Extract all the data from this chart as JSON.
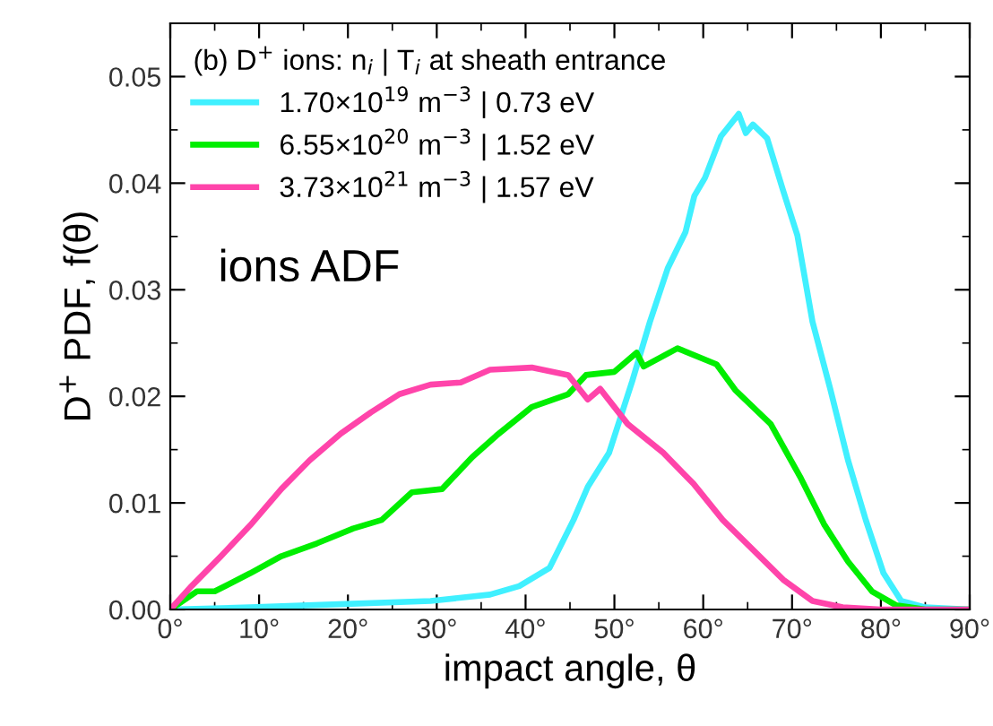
{
  "chart_data": {
    "type": "line",
    "xlabel": "impact angle, θ",
    "ylabel": "D$^{+}$ PDF, f(θ)",
    "legend_title": "(b) D$^{+}$ ions: n$_{i}$ | T$_{i}$ at sheath entrance",
    "legend": "top left",
    "grid": false,
    "marker": "none",
    "line_style": "solid",
    "annotations": [
      "ions ADF"
    ],
    "xlim": [
      0,
      90
    ],
    "ylim": [
      0,
      0.055
    ],
    "xticks": [
      {
        "value": 0,
        "label": "0°"
      },
      {
        "value": 10,
        "label": "10°"
      },
      {
        "value": 20,
        "label": "20°"
      },
      {
        "value": 30,
        "label": "30°"
      },
      {
        "value": 40,
        "label": "40°"
      },
      {
        "value": 50,
        "label": "50°"
      },
      {
        "value": 60,
        "label": "60°"
      },
      {
        "value": 70,
        "label": "70°"
      },
      {
        "value": 80,
        "label": "80°"
      },
      {
        "value": 90,
        "label": "90°"
      }
    ],
    "yticks": [
      {
        "value": 0,
        "label": "0.00"
      },
      {
        "value": 0.01,
        "label": "0.01"
      },
      {
        "value": 0.02,
        "label": "0.02"
      },
      {
        "value": 0.03,
        "label": "0.03"
      },
      {
        "value": 0.04,
        "label": "0.04"
      },
      {
        "value": 0.05,
        "label": "0.05"
      }
    ],
    "series": [
      {
        "name": "1.70×10$^{19}$ m$^{−3}$ | 0.73 eV",
        "color": "#40f0ff",
        "x": [
          0,
          9,
          19,
          29.3,
          36,
          39.3,
          42.7,
          45.4,
          47,
          49.4,
          52,
          54,
          56,
          58,
          59,
          60.2,
          62,
          64,
          64.8,
          65.6,
          67.2,
          69,
          70.6,
          72.3,
          74.3,
          76.3,
          78.3,
          80.3,
          82.3,
          85,
          90
        ],
        "values": [
          0,
          0.0002,
          0.0005,
          0.0008,
          0.0014,
          0.0022,
          0.0039,
          0.0084,
          0.0115,
          0.0147,
          0.0214,
          0.027,
          0.032,
          0.0354,
          0.0388,
          0.0405,
          0.0444,
          0.0465,
          0.0447,
          0.0455,
          0.0442,
          0.0393,
          0.0351,
          0.027,
          0.0207,
          0.014,
          0.0084,
          0.0034,
          0.0008,
          0.0002,
          0
        ]
      },
      {
        "name": "6.55×10$^{20}$ m$^{−3}$ | 1.52 eV",
        "color": "#00ee00",
        "x": [
          0,
          3,
          5,
          9,
          12.5,
          16.5,
          20.6,
          23.8,
          27.2,
          30.6,
          34,
          36.7,
          40.7,
          44.8,
          46.8,
          50,
          52.5,
          53.3,
          57.1,
          61.5,
          63.6,
          67.6,
          71,
          73.6,
          76.3,
          79,
          81.7,
          85,
          90
        ],
        "values": [
          0,
          0.0017,
          0.0017,
          0.0034,
          0.005,
          0.0062,
          0.0076,
          0.0084,
          0.011,
          0.0113,
          0.0143,
          0.0163,
          0.019,
          0.0202,
          0.022,
          0.0223,
          0.0241,
          0.0228,
          0.0245,
          0.023,
          0.0206,
          0.0174,
          0.0123,
          0.008,
          0.0045,
          0.0017,
          0.0004,
          0,
          0
        ]
      },
      {
        "name": "3.73×10$^{21}$ m$^{−3}$ | 1.57 eV",
        "color": "#ff44aa",
        "x": [
          0,
          2.4,
          5.7,
          9,
          12.5,
          15.7,
          19.2,
          22.6,
          25.8,
          29.3,
          32.7,
          36,
          40.7,
          44.8,
          47,
          48.4,
          51.5,
          55.5,
          58.9,
          62.2,
          65.6,
          69,
          72.3,
          75.7,
          80,
          90
        ],
        "values": [
          0,
          0.0022,
          0.005,
          0.0079,
          0.0113,
          0.014,
          0.0165,
          0.0185,
          0.0202,
          0.0211,
          0.0213,
          0.0225,
          0.0227,
          0.022,
          0.0197,
          0.0207,
          0.0174,
          0.0147,
          0.0118,
          0.0084,
          0.0056,
          0.0028,
          0.0008,
          0.0002,
          0,
          0
        ]
      }
    ]
  }
}
